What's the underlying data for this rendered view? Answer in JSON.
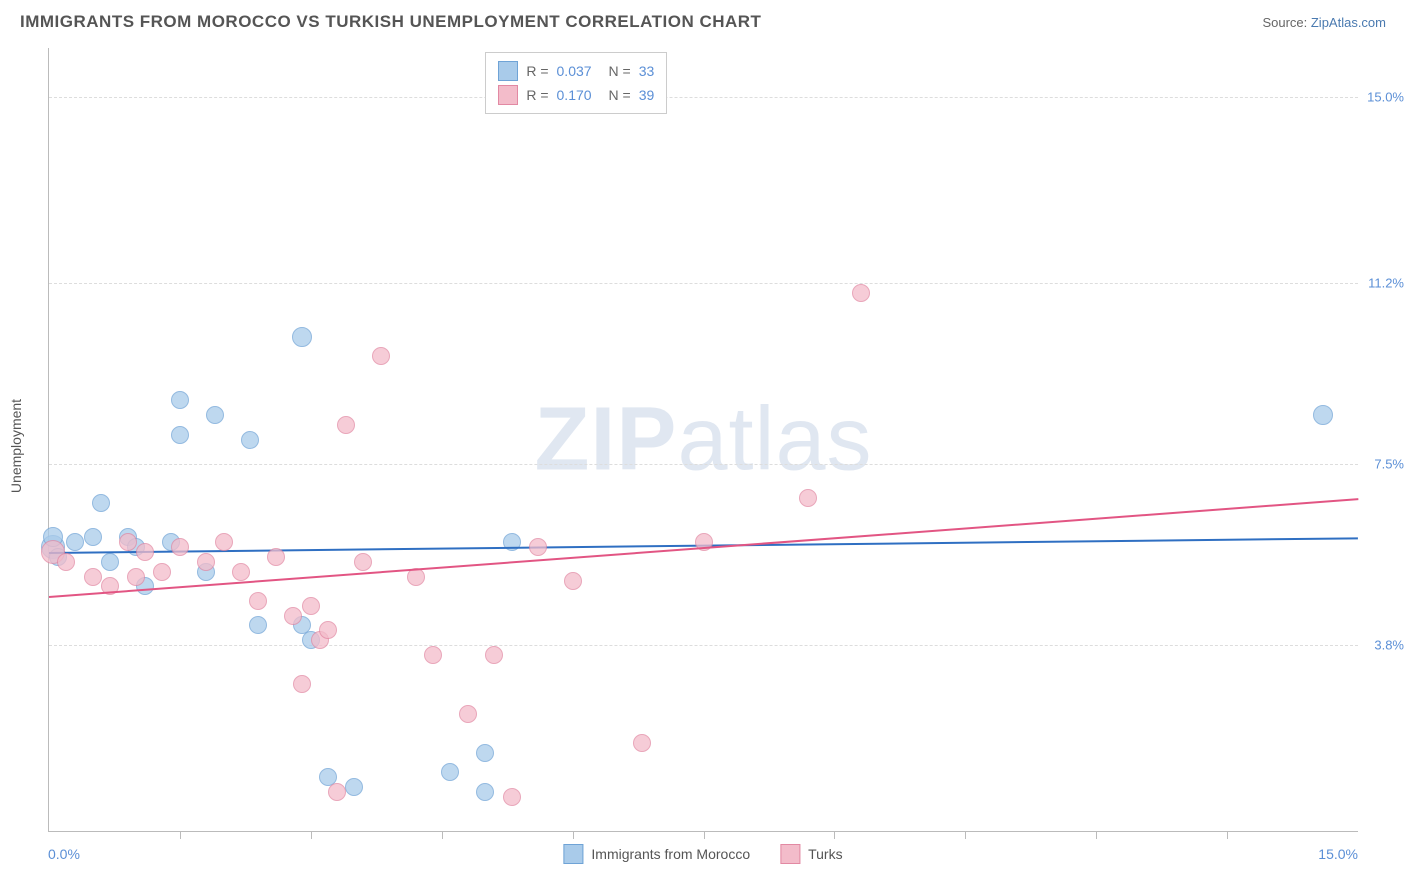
{
  "title": "IMMIGRANTS FROM MOROCCO VS TURKISH UNEMPLOYMENT CORRELATION CHART",
  "source_prefix": "Source: ",
  "source_link": "ZipAtlas.com",
  "ylabel": "Unemployment",
  "watermark_a": "ZIP",
  "watermark_b": "atlas",
  "chart": {
    "type": "scatter",
    "xlim": [
      0,
      15
    ],
    "ylim": [
      0,
      16
    ],
    "yticks": [
      {
        "v": 3.8,
        "label": "3.8%"
      },
      {
        "v": 7.5,
        "label": "7.5%"
      },
      {
        "v": 11.2,
        "label": "11.2%"
      },
      {
        "v": 15.0,
        "label": "15.0%"
      }
    ],
    "xticks_minor": [
      1.5,
      3.0,
      4.5,
      6.0,
      7.5,
      9.0,
      10.5,
      12.0,
      13.5
    ],
    "x_axis_left": "0.0%",
    "x_axis_right": "15.0%",
    "background_color": "#ffffff",
    "grid_color": "#dddddd",
    "series": [
      {
        "name": "Immigrants from Morocco",
        "fill": "#a9cbea",
        "stroke": "#6fa3d6",
        "line_color": "#2f6fc2",
        "R": "0.037",
        "N": "33",
        "trend": {
          "y_at_x0": 5.7,
          "y_at_xmax": 6.0
        },
        "points": [
          {
            "x": 0.05,
            "y": 5.8,
            "r": 11
          },
          {
            "x": 0.05,
            "y": 6.0,
            "r": 9
          },
          {
            "x": 0.1,
            "y": 5.6,
            "r": 8
          },
          {
            "x": 0.3,
            "y": 5.9,
            "r": 8
          },
          {
            "x": 0.5,
            "y": 6.0,
            "r": 8
          },
          {
            "x": 0.6,
            "y": 6.7,
            "r": 8
          },
          {
            "x": 0.7,
            "y": 5.5,
            "r": 8
          },
          {
            "x": 0.9,
            "y": 6.0,
            "r": 8
          },
          {
            "x": 1.0,
            "y": 5.8,
            "r": 8
          },
          {
            "x": 1.1,
            "y": 5.0,
            "r": 8
          },
          {
            "x": 1.4,
            "y": 5.9,
            "r": 8
          },
          {
            "x": 1.5,
            "y": 8.8,
            "r": 8
          },
          {
            "x": 1.5,
            "y": 8.1,
            "r": 8
          },
          {
            "x": 1.8,
            "y": 5.3,
            "r": 8
          },
          {
            "x": 1.9,
            "y": 8.5,
            "r": 8
          },
          {
            "x": 2.3,
            "y": 8.0,
            "r": 8
          },
          {
            "x": 2.4,
            "y": 4.2,
            "r": 8
          },
          {
            "x": 2.9,
            "y": 10.1,
            "r": 9
          },
          {
            "x": 2.9,
            "y": 4.2,
            "r": 8
          },
          {
            "x": 3.0,
            "y": 3.9,
            "r": 8
          },
          {
            "x": 3.2,
            "y": 1.1,
            "r": 8
          },
          {
            "x": 3.5,
            "y": 0.9,
            "r": 8
          },
          {
            "x": 4.6,
            "y": 1.2,
            "r": 8
          },
          {
            "x": 5.0,
            "y": 1.6,
            "r": 8
          },
          {
            "x": 5.0,
            "y": 0.8,
            "r": 8
          },
          {
            "x": 5.3,
            "y": 5.9,
            "r": 8
          },
          {
            "x": 14.6,
            "y": 8.5,
            "r": 9
          }
        ]
      },
      {
        "name": "Turks",
        "fill": "#f3bcca",
        "stroke": "#e289a3",
        "line_color": "#e25583",
        "R": "0.170",
        "N": "39",
        "trend": {
          "y_at_x0": 4.8,
          "y_at_xmax": 6.8
        },
        "points": [
          {
            "x": 0.05,
            "y": 5.7,
            "r": 11
          },
          {
            "x": 0.2,
            "y": 5.5,
            "r": 8
          },
          {
            "x": 0.5,
            "y": 5.2,
            "r": 8
          },
          {
            "x": 0.7,
            "y": 5.0,
            "r": 8
          },
          {
            "x": 0.9,
            "y": 5.9,
            "r": 8
          },
          {
            "x": 1.0,
            "y": 5.2,
            "r": 8
          },
          {
            "x": 1.1,
            "y": 5.7,
            "r": 8
          },
          {
            "x": 1.3,
            "y": 5.3,
            "r": 8
          },
          {
            "x": 1.5,
            "y": 5.8,
            "r": 8
          },
          {
            "x": 1.8,
            "y": 5.5,
            "r": 8
          },
          {
            "x": 2.0,
            "y": 5.9,
            "r": 8
          },
          {
            "x": 2.2,
            "y": 5.3,
            "r": 8
          },
          {
            "x": 2.4,
            "y": 4.7,
            "r": 8
          },
          {
            "x": 2.6,
            "y": 5.6,
            "r": 8
          },
          {
            "x": 2.8,
            "y": 4.4,
            "r": 8
          },
          {
            "x": 2.9,
            "y": 3.0,
            "r": 8
          },
          {
            "x": 3.0,
            "y": 4.6,
            "r": 8
          },
          {
            "x": 3.1,
            "y": 3.9,
            "r": 8
          },
          {
            "x": 3.2,
            "y": 4.1,
            "r": 8
          },
          {
            "x": 3.3,
            "y": 0.8,
            "r": 8
          },
          {
            "x": 3.4,
            "y": 8.3,
            "r": 8
          },
          {
            "x": 3.6,
            "y": 5.5,
            "r": 8
          },
          {
            "x": 3.8,
            "y": 9.7,
            "r": 8
          },
          {
            "x": 4.2,
            "y": 5.2,
            "r": 8
          },
          {
            "x": 4.4,
            "y": 3.6,
            "r": 8
          },
          {
            "x": 4.8,
            "y": 2.4,
            "r": 8
          },
          {
            "x": 5.1,
            "y": 3.6,
            "r": 8
          },
          {
            "x": 5.3,
            "y": 0.7,
            "r": 8
          },
          {
            "x": 5.6,
            "y": 5.8,
            "r": 8
          },
          {
            "x": 6.0,
            "y": 5.1,
            "r": 8
          },
          {
            "x": 6.8,
            "y": 1.8,
            "r": 8
          },
          {
            "x": 7.5,
            "y": 5.9,
            "r": 8
          },
          {
            "x": 8.7,
            "y": 6.8,
            "r": 8
          },
          {
            "x": 9.3,
            "y": 11.0,
            "r": 8
          }
        ]
      }
    ]
  },
  "legend_box": {
    "r_label": "R =",
    "n_label": "N ="
  }
}
